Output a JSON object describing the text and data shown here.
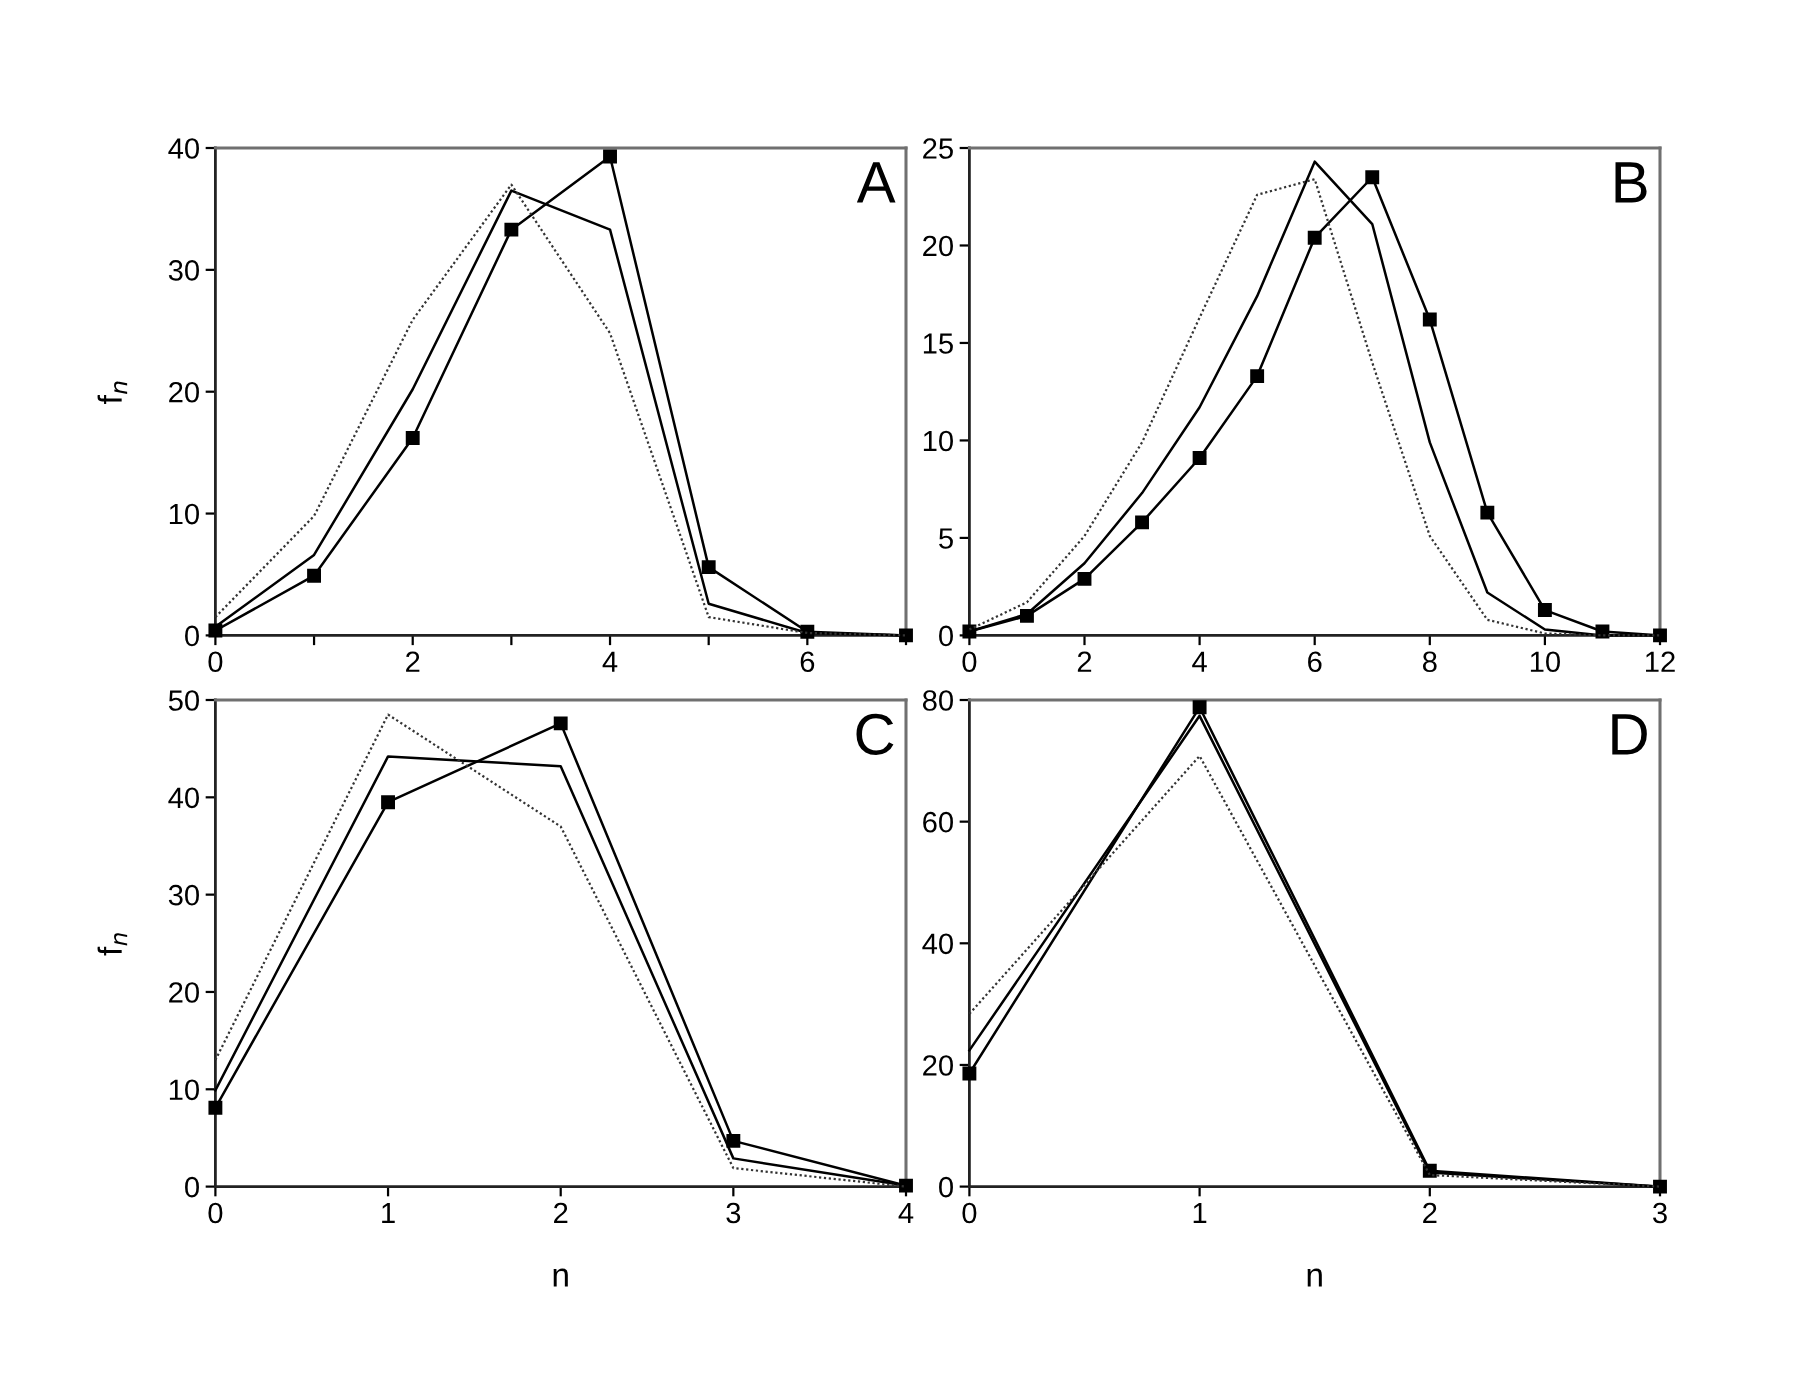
{
  "chart_data": [
    {
      "type": "line",
      "ylabel": "f$_{n}$",
      "annotations": [
        "A"
      ],
      "x": [
        0,
        1,
        2,
        3,
        4,
        5,
        6,
        7
      ],
      "xlim": [
        0,
        7
      ],
      "xticks": [
        0,
        {
          "value": 1,
          "label": null
        },
        2,
        {
          "value": 3,
          "label": null
        },
        4,
        {
          "value": 5,
          "label": null
        },
        6,
        {
          "value": 7,
          "label": null
        }
      ],
      "ylim": [
        0,
        40
      ],
      "yticks": [
        0,
        10,
        20,
        30,
        40
      ],
      "series": [
        {
          "color": "#000000",
          "marker": "square",
          "line_style": "solid",
          "values": [
            0.4,
            4.9,
            16.2,
            33.3,
            39.3,
            5.6,
            0.3,
            0
          ]
        },
        {
          "color": "#000000",
          "marker": "none",
          "line_style": "solid",
          "values": [
            0.7,
            6.6,
            20.2,
            36.5,
            33.3,
            2.6,
            0.2,
            0
          ]
        },
        {
          "color": "#333333",
          "marker": "none",
          "line_style": "dotted",
          "values": [
            1.5,
            9.8,
            25.9,
            37.0,
            24.8,
            1.5,
            0.2,
            0
          ]
        }
      ]
    },
    {
      "type": "line",
      "annotations": [
        "B"
      ],
      "x": [
        0,
        1,
        2,
        3,
        4,
        5,
        6,
        7,
        8,
        9,
        10,
        11,
        12
      ],
      "xlim": [
        0,
        12
      ],
      "xticks": [
        0,
        2,
        4,
        6,
        8,
        10,
        12
      ],
      "ylim": [
        0,
        25
      ],
      "yticks": [
        0,
        5,
        10,
        15,
        20,
        25
      ],
      "series": [
        {
          "color": "#000000",
          "marker": "square",
          "line_style": "solid",
          "values": [
            0.2,
            1.0,
            2.9,
            5.8,
            9.1,
            13.3,
            20.4,
            23.5,
            16.2,
            6.3,
            1.3,
            0.2,
            0
          ]
        },
        {
          "color": "#000000",
          "marker": "none",
          "line_style": "solid",
          "values": [
            0.2,
            1.1,
            3.7,
            7.3,
            11.7,
            17.4,
            24.3,
            21.1,
            9.9,
            2.2,
            0.3,
            0,
            0
          ]
        },
        {
          "color": "#333333",
          "marker": "none",
          "line_style": "dotted",
          "values": [
            0.3,
            1.7,
            5.1,
            9.9,
            16.3,
            22.6,
            23.4,
            14.0,
            5.1,
            0.8,
            0.1,
            0,
            0
          ]
        }
      ]
    },
    {
      "type": "line",
      "ylabel": "f$_{n}$",
      "xlabel": "n",
      "annotations": [
        "C"
      ],
      "x": [
        0,
        1,
        2,
        3,
        4
      ],
      "xlim": [
        0,
        4
      ],
      "xticks": [
        0,
        1,
        2,
        3,
        4
      ],
      "ylim": [
        0,
        50
      ],
      "yticks": [
        0,
        10,
        20,
        30,
        40,
        50
      ],
      "series": [
        {
          "color": "#000000",
          "marker": "square",
          "line_style": "solid",
          "values": [
            8.1,
            39.5,
            47.6,
            4.7,
            0.1
          ]
        },
        {
          "color": "#000000",
          "marker": "none",
          "line_style": "solid",
          "values": [
            9.9,
            44.2,
            43.2,
            2.9,
            0.1
          ]
        },
        {
          "color": "#333333",
          "marker": "none",
          "line_style": "dotted",
          "values": [
            13.0,
            48.5,
            37.0,
            1.9,
            0
          ]
        }
      ]
    },
    {
      "type": "line",
      "xlabel": "n",
      "annotations": [
        "D"
      ],
      "x": [
        0,
        1,
        2,
        3
      ],
      "xlim": [
        0,
        3
      ],
      "xticks": [
        0,
        1,
        2,
        3
      ],
      "ylim": [
        0,
        80
      ],
      "yticks": [
        0,
        20,
        40,
        60,
        80
      ],
      "series": [
        {
          "color": "#000000",
          "marker": "square",
          "line_style": "solid",
          "values": [
            18.6,
            78.8,
            2.6,
            0
          ]
        },
        {
          "color": "#000000",
          "marker": "none",
          "line_style": "solid",
          "values": [
            22.4,
            77.4,
            2.3,
            0
          ]
        },
        {
          "color": "#333333",
          "marker": "none",
          "line_style": "dotted",
          "values": [
            28.4,
            70.8,
            1.9,
            0
          ]
        }
      ]
    }
  ]
}
